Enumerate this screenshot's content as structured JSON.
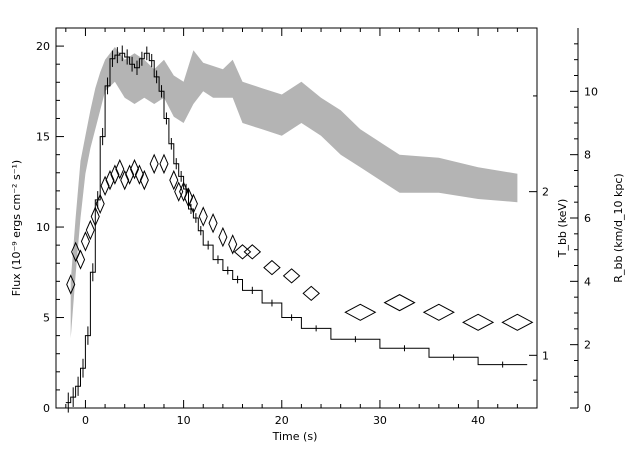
{
  "chart_data": {
    "type": "line",
    "xlabel": "Time (s)",
    "ylabel_left": "Flux (10⁻⁹ ergs cm⁻² s⁻¹)",
    "ylabel_right_inner": "T_bb (keV)",
    "ylabel_right_outer": "R_bb (km/d_10 kpc)",
    "xlim": [
      -3,
      46
    ],
    "ylim_left": [
      0,
      21
    ],
    "ylim_right_inner_log": [
      0.8,
      4.0
    ],
    "ylim_right_outer": [
      0,
      12
    ],
    "x_ticks": [
      0,
      10,
      20,
      30,
      40
    ],
    "y_ticks_left": [
      0,
      5,
      10,
      15,
      20
    ],
    "y_ticks_right_inner": [
      1,
      2
    ],
    "y_ticks_right_outer": [
      0,
      2,
      4,
      6,
      8,
      10
    ],
    "series": [
      {
        "name": "Flux",
        "style": "step",
        "color": "#000000",
        "x": [
          -2.0,
          -1.5,
          -1.0,
          -0.5,
          0.0,
          0.5,
          1.0,
          1.5,
          2.0,
          2.5,
          3.0,
          3.5,
          4.0,
          4.5,
          5.0,
          5.5,
          6.0,
          6.5,
          7.0,
          7.5,
          8.0,
          8.5,
          9.0,
          9.5,
          10.0,
          10.5,
          11.0,
          11.5,
          12.0,
          13.0,
          14.0,
          15.0,
          16.0,
          18.0,
          20.0,
          22.0,
          25.0,
          30.0,
          35.0,
          40.0,
          45.0
        ],
        "y": [
          0.3,
          0.6,
          1.2,
          2.2,
          4.0,
          7.5,
          11.5,
          15.0,
          17.8,
          19.3,
          19.5,
          19.6,
          19.4,
          19.0,
          18.8,
          19.3,
          19.6,
          19.2,
          18.3,
          17.5,
          16.0,
          14.6,
          13.5,
          12.8,
          12.1,
          11.0,
          10.5,
          9.8,
          9.0,
          8.2,
          7.6,
          7.1,
          6.5,
          5.8,
          5.0,
          4.4,
          3.8,
          3.3,
          2.8,
          2.4,
          2.4
        ]
      },
      {
        "name": "T_bb",
        "style": "diamonds",
        "color": "#000000",
        "x": [
          -1.5,
          -1.0,
          -0.5,
          0.0,
          0.5,
          1.0,
          1.5,
          2.0,
          2.5,
          3.0,
          3.5,
          4.0,
          4.5,
          5.0,
          5.5,
          6.0,
          7.0,
          8.0,
          9.0,
          9.5,
          10.0,
          10.5,
          11.0,
          12.0,
          13.0,
          14.0,
          15.0,
          16.0,
          17.0,
          19.0,
          21.0,
          23.0,
          28.0,
          32.0,
          36.0,
          40.0,
          44.0
        ],
        "y": [
          1.35,
          1.55,
          1.5,
          1.62,
          1.7,
          1.8,
          1.9,
          2.05,
          2.1,
          2.15,
          2.2,
          2.1,
          2.15,
          2.2,
          2.15,
          2.1,
          2.25,
          2.25,
          2.1,
          2.0,
          2.0,
          1.95,
          1.9,
          1.8,
          1.75,
          1.65,
          1.6,
          1.55,
          1.55,
          1.45,
          1.4,
          1.3,
          1.2,
          1.25,
          1.2,
          1.15,
          1.15
        ]
      },
      {
        "name": "R_bb",
        "style": "band",
        "color": "#b4b4b4",
        "x": [
          -1.5,
          -1.0,
          -0.5,
          0.0,
          0.5,
          1.0,
          1.5,
          2.0,
          3.0,
          4.0,
          5.0,
          6.0,
          7.0,
          8.0,
          9.0,
          10.0,
          11.0,
          12.0,
          13.0,
          14.0,
          15.0,
          16.0,
          18.0,
          20.0,
          22.0,
          24.0,
          26.0,
          28.0,
          30.0,
          32.0,
          36.0,
          40.0,
          44.0
        ],
        "lower": [
          2.2,
          4.2,
          6.0,
          7.4,
          8.2,
          8.8,
          9.4,
          10.0,
          10.3,
          9.8,
          9.6,
          9.8,
          9.6,
          9.8,
          9.2,
          9.0,
          9.6,
          10.0,
          9.8,
          9.8,
          9.8,
          9.0,
          8.8,
          8.6,
          9.0,
          8.6,
          8.0,
          7.6,
          7.2,
          6.8,
          6.8,
          6.6,
          6.5
        ],
        "upper": [
          4.0,
          6.0,
          7.8,
          8.6,
          9.4,
          10.1,
          10.6,
          11.0,
          11.4,
          11.0,
          11.2,
          11.0,
          10.7,
          11.0,
          10.5,
          10.3,
          11.3,
          10.9,
          10.8,
          10.7,
          11.0,
          10.3,
          10.1,
          9.9,
          10.3,
          9.8,
          9.4,
          8.8,
          8.4,
          8.0,
          7.9,
          7.6,
          7.4
        ]
      }
    ]
  }
}
